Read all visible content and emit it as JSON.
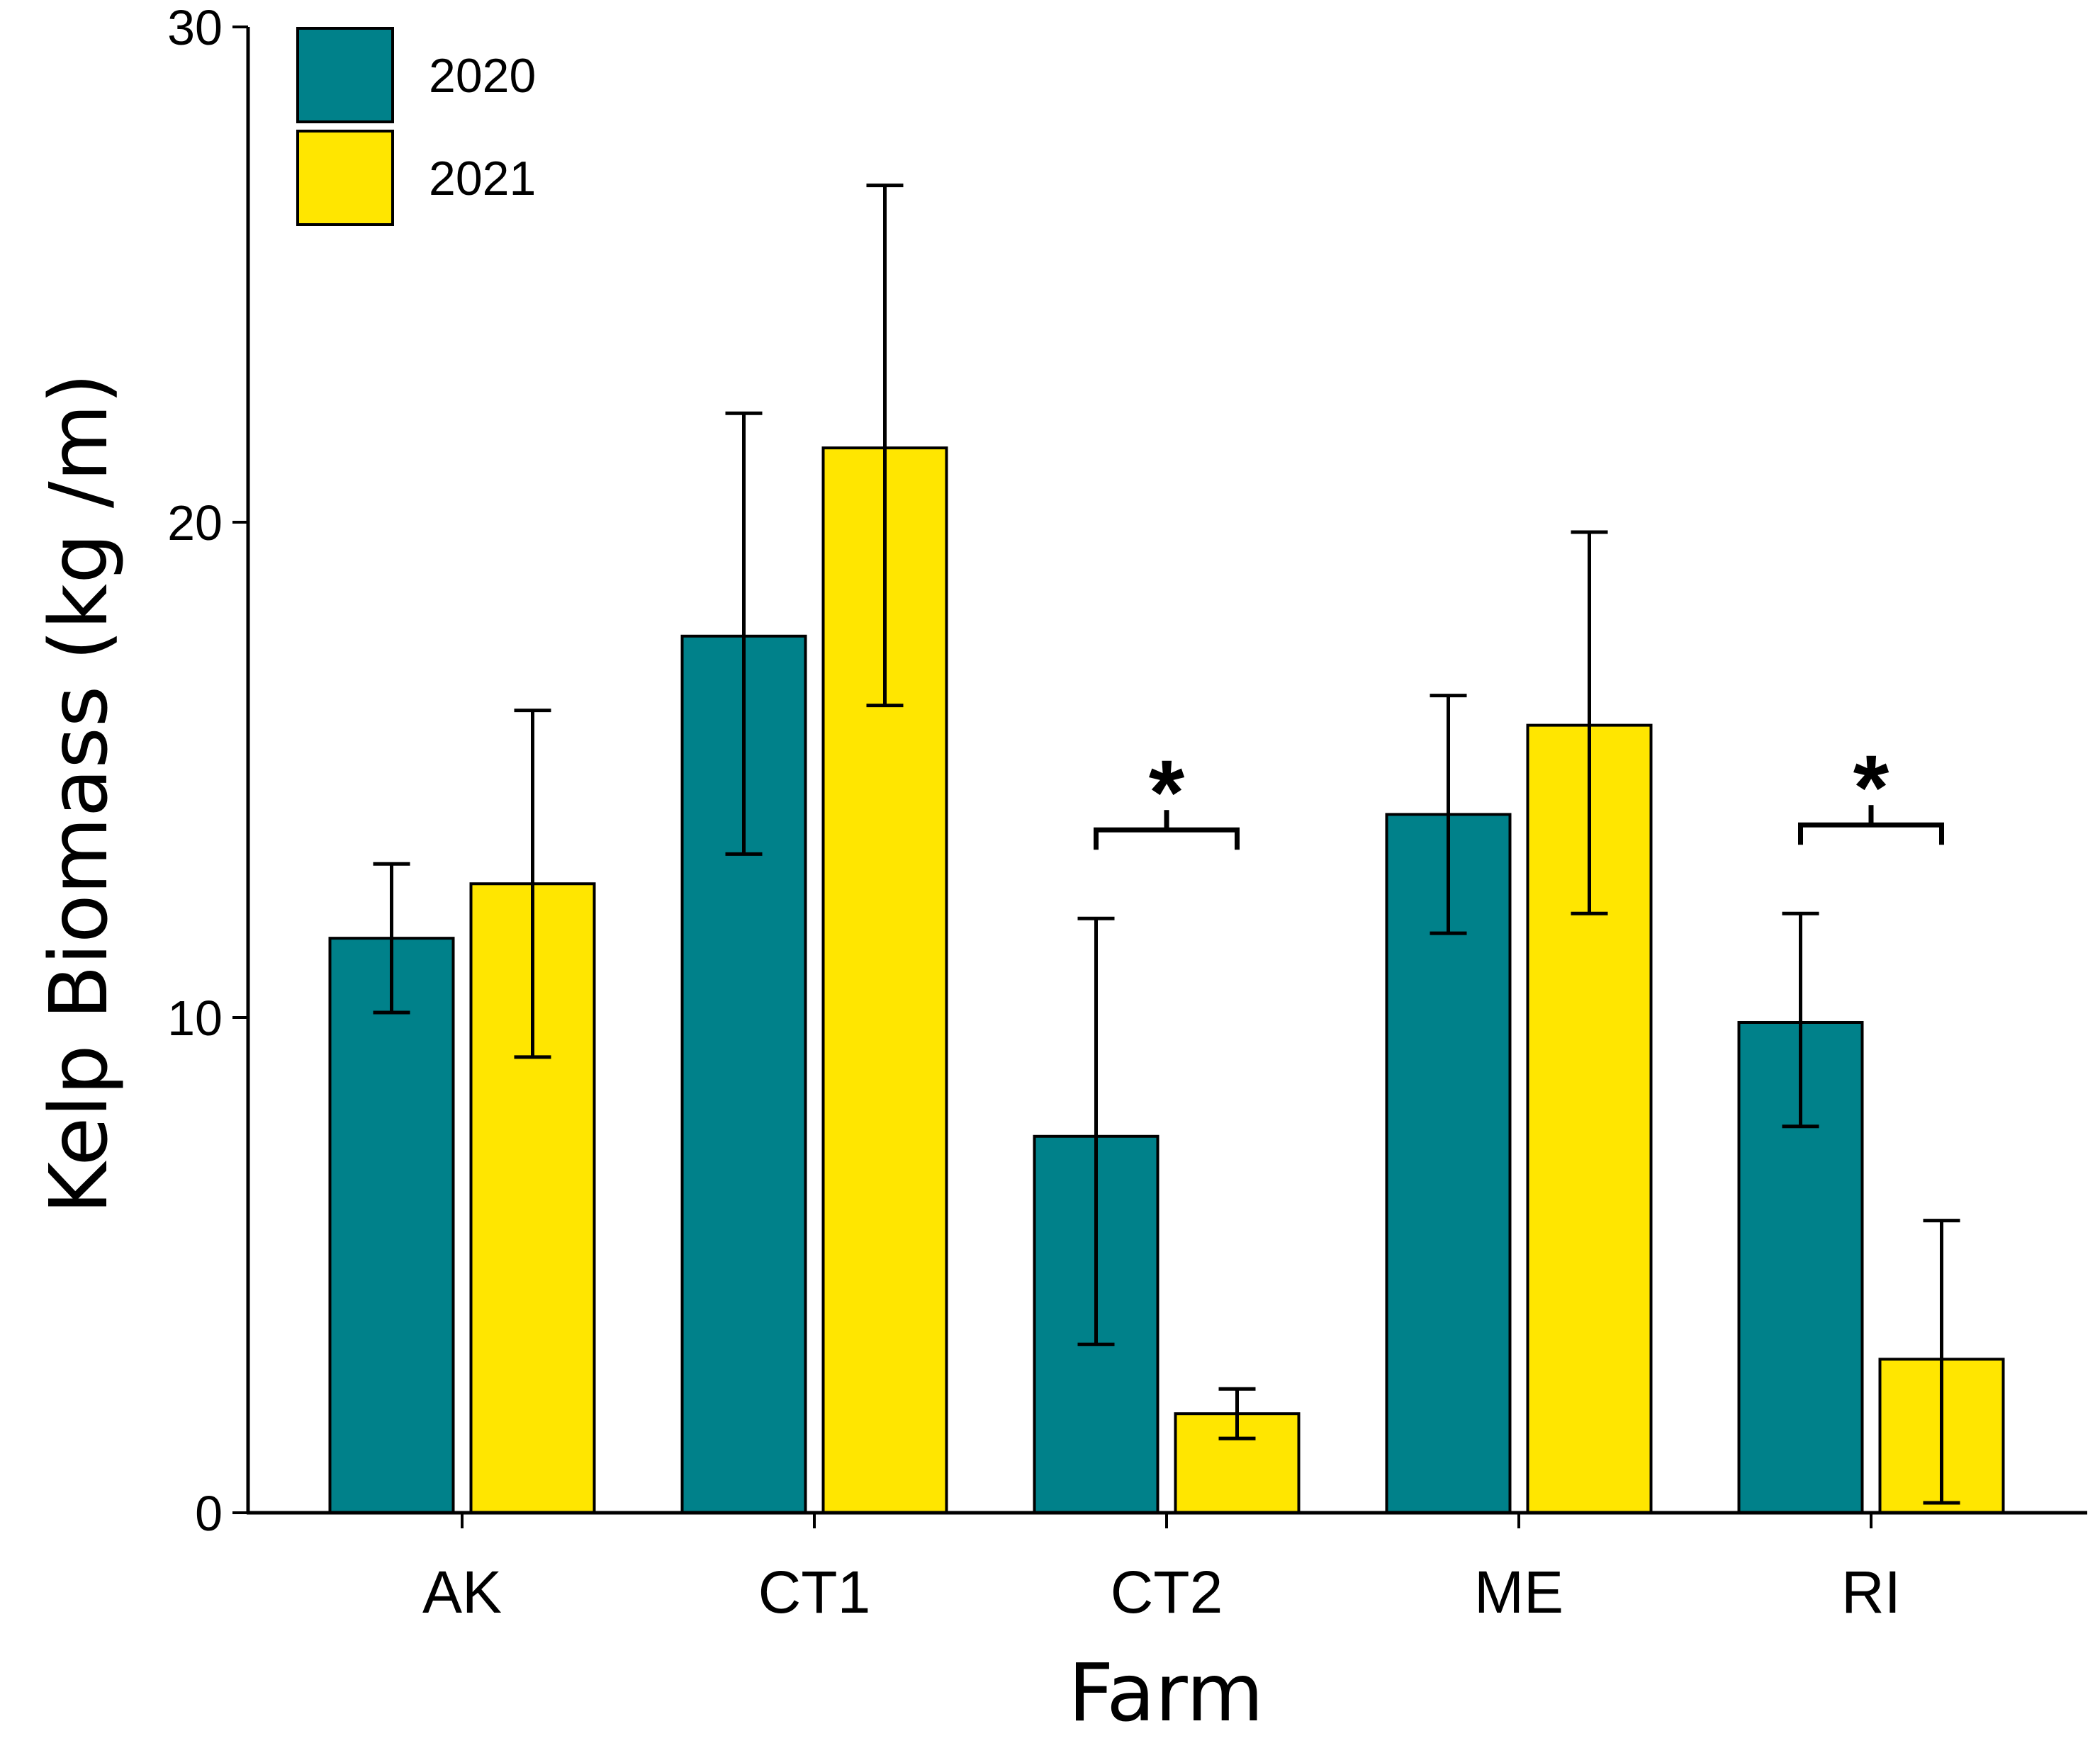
{
  "chart_data": {
    "type": "bar",
    "title": "",
    "xlabel": "Farm",
    "ylabel": "Kelp Biomass (kg /m)",
    "ylim": [
      0,
      30
    ],
    "yticks": [
      0,
      10,
      20,
      30
    ],
    "categories": [
      "AK",
      "CT1",
      "CT2",
      "ME",
      "RI"
    ],
    "series": [
      {
        "name": "2020",
        "color": "#00818A",
        "values": [
          11.6,
          17.7,
          7.6,
          14.1,
          9.9
        ],
        "error_low": [
          10.1,
          13.3,
          3.4,
          11.7,
          7.8
        ],
        "error_high": [
          13.1,
          22.2,
          12.0,
          16.5,
          12.1
        ]
      },
      {
        "name": "2021",
        "color": "#FFE600",
        "values": [
          12.7,
          21.5,
          2.0,
          15.9,
          3.1
        ],
        "error_low": [
          9.2,
          16.3,
          1.5,
          12.1,
          0.2
        ],
        "error_high": [
          16.2,
          26.8,
          2.5,
          19.8,
          5.9
        ]
      }
    ],
    "significance": [
      {
        "category": "CT2",
        "label": "*"
      },
      {
        "category": "RI",
        "label": "*"
      }
    ],
    "legend_position": "top-left",
    "grid": false
  }
}
